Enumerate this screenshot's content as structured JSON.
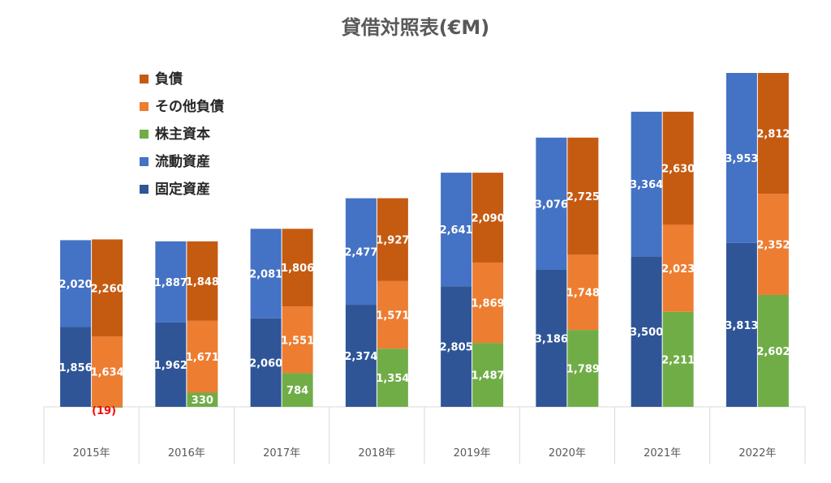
{
  "chart_data": {
    "type": "bar",
    "title": "貸借対照表(€M)",
    "categories": [
      "2015年",
      "2016年",
      "2017年",
      "2018年",
      "2019年",
      "2020年",
      "2021年",
      "2022年"
    ],
    "stacks": [
      {
        "side": "assets",
        "series": [
          {
            "name": "固定資産",
            "color": "#2F5597",
            "values": [
              1856,
              1962,
              2060,
              2374,
              2805,
              3186,
              3500,
              3813
            ]
          },
          {
            "name": "流動資産",
            "color": "#4472C4",
            "values": [
              2020,
              1887,
              2081,
              2477,
              2641,
              3076,
              3364,
              3953
            ]
          }
        ]
      },
      {
        "side": "liabilities_equity",
        "series": [
          {
            "name": "株主資本",
            "color": "#70AD47",
            "values": [
              -19,
              330,
              784,
              1354,
              1487,
              1789,
              2211,
              2602
            ]
          },
          {
            "name": "その他負債",
            "color": "#ED7D31",
            "values": [
              1634,
              1671,
              1551,
              1571,
              1869,
              1748,
              2023,
              2352
            ]
          },
          {
            "name": "負債",
            "color": "#C55A11",
            "values": [
              2260,
              1848,
              1806,
              1927,
              2090,
              2725,
              2630,
              2812
            ]
          }
        ]
      }
    ],
    "data_labels": {
      "assets": [
        [
          "1,856",
          "1,962",
          "2,060",
          "2,374",
          "2,805",
          "3,186",
          "3,500",
          "3,813"
        ],
        [
          "2,020",
          "1,887",
          "2,081",
          "2,477",
          "2,641",
          "3,076",
          "3,364",
          "3,953"
        ]
      ],
      "liabilities_equity": [
        [
          "(19)",
          "330",
          "784",
          "1,354",
          "1,487",
          "1,789",
          "2,211",
          "2,602"
        ],
        [
          "1,634",
          "1,671",
          "1,551",
          "1,571",
          "1,869",
          "1,748",
          "2,023",
          "2,352"
        ],
        [
          "2,260",
          "1,848",
          "1,806",
          "1,927",
          "2,090",
          "2,725",
          "2,630",
          "2,812"
        ]
      ]
    },
    "legend": {
      "placement": "top-left",
      "entries": [
        {
          "name": "負債",
          "color": "#C55A11"
        },
        {
          "name": "その他負債",
          "color": "#ED7D31"
        },
        {
          "name": "株主資本",
          "color": "#70AD47"
        },
        {
          "name": "流動資産",
          "color": "#4472C4"
        },
        {
          "name": "固定資産",
          "color": "#2F5597"
        }
      ]
    },
    "ylim": [
      -19,
      7766
    ],
    "grid": false,
    "xlabel": "",
    "ylabel": ""
  }
}
